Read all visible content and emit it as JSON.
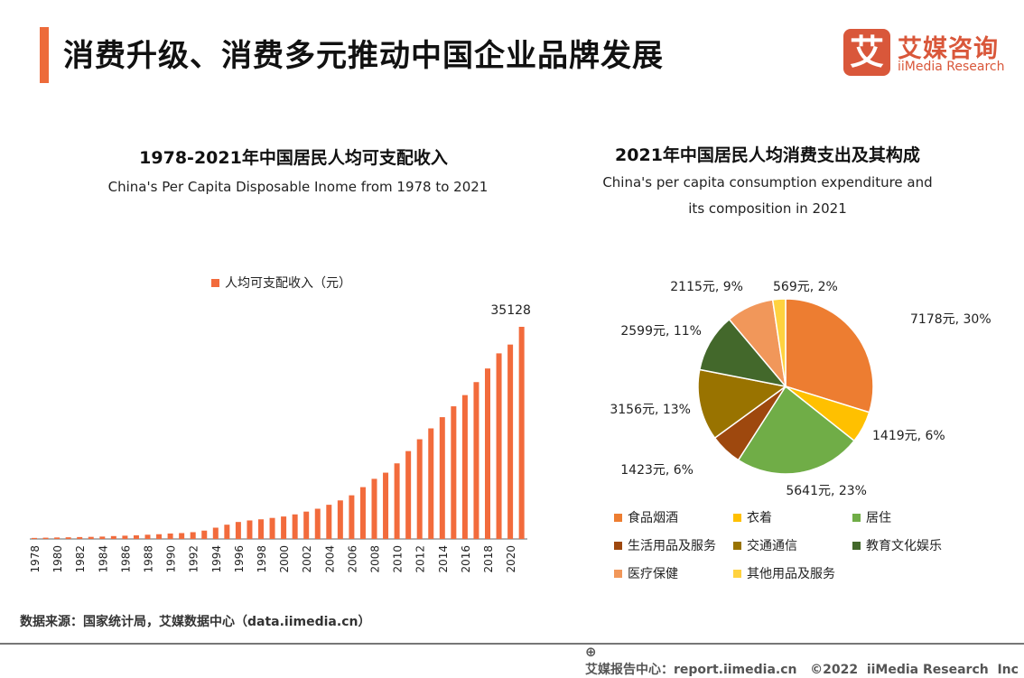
{
  "header": {
    "title": "消费升级、消费多元推动中国企业品牌发展",
    "accent_color": "#ED6B3A",
    "logo": {
      "mark": "艾",
      "cn": "艾媒咨询",
      "en": "iiMedia Research"
    }
  },
  "chart_data": [
    {
      "type": "bar",
      "title": "1978-2021年中国居民人均可支配收入",
      "subtitle": "China's Per Capita Disposable Inome from 1978 to 2021",
      "legend": "人均可支配收入（元）",
      "legend_placement": "top",
      "color": "#F26B3C",
      "grid": false,
      "categories": [
        1978,
        1979,
        1980,
        1981,
        1982,
        1983,
        1984,
        1985,
        1986,
        1987,
        1988,
        1989,
        1990,
        1991,
        1992,
        1993,
        1994,
        1995,
        1996,
        1997,
        1998,
        1999,
        2000,
        2001,
        2002,
        2003,
        2004,
        2005,
        2006,
        2007,
        2008,
        2009,
        2010,
        2011,
        2012,
        2013,
        2014,
        2015,
        2016,
        2017,
        2018,
        2019,
        2020,
        2021
      ],
      "tick_labels": [
        "1978",
        "1980",
        "1982",
        "1984",
        "1986",
        "1988",
        "1990",
        "1992",
        "1994",
        "1996",
        "1998",
        "2000",
        "2002",
        "2004",
        "2006",
        "2008",
        "2010",
        "2012",
        "2014",
        "2016",
        "2018",
        "2020"
      ],
      "values": [
        171,
        212,
        247,
        276,
        316,
        349,
        395,
        479,
        544,
        603,
        703,
        787,
        904,
        976,
        1125,
        1385,
        1870,
        2363,
        2814,
        3070,
        3254,
        3485,
        3721,
        4070,
        4532,
        5007,
        5661,
        6385,
        7229,
        8584,
        9957,
        10977,
        12520,
        14551,
        16510,
        18311,
        20167,
        21966,
        23821,
        25974,
        28228,
        30733,
        32189,
        35128
      ],
      "data_label": "35128",
      "ylim": [
        0,
        36000
      ]
    },
    {
      "type": "pie",
      "title": "2021年中国居民人均消费支出及其构成",
      "subtitle": [
        "China's per capita consumption expenditure and",
        "its composition in 2021"
      ],
      "slices": [
        {
          "name": "食品烟酒",
          "value": 7178,
          "label": "7178元, 30%",
          "color": "#ED7D31"
        },
        {
          "name": "衣着",
          "value": 1419,
          "label": "1419元, 6%",
          "color": "#FFC000"
        },
        {
          "name": "居住",
          "value": 5641,
          "label": "5641元, 23%",
          "color": "#70AD47"
        },
        {
          "name": "生活用品及服务",
          "value": 1423,
          "label": "1423元, 6%",
          "color": "#9E480E"
        },
        {
          "name": "交通通信",
          "value": 3156,
          "label": "3156元, 13%",
          "color": "#997300"
        },
        {
          "name": "教育文化娱乐",
          "value": 2599,
          "label": "2599元, 11%",
          "color": "#43682B"
        },
        {
          "name": "医疗保健",
          "value": 2115,
          "label": "2115元, 9%",
          "color": "#F1975A"
        },
        {
          "name": "其他用品及服务",
          "value": 569,
          "label": "569元, 2%",
          "color": "#FFD23F"
        }
      ],
      "legend_placement": "bottom"
    }
  ],
  "source": "数据来源：国家统计局，艾媒数据中心（data.iimedia.cn）",
  "footer": {
    "text": "艾媒报告中心：report.iimedia.cn   ©2022  iiMedia Research  Inc",
    "icon": "globe-cursor-icon"
  }
}
